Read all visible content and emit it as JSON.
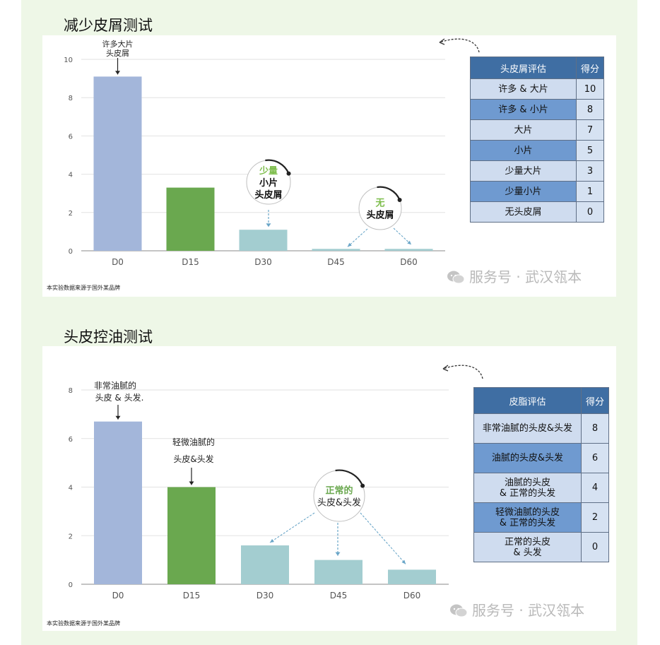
{
  "sections": [
    {
      "title": "减少皮屑测试",
      "source_note": "本实验数据来源于国外某品牌",
      "watermark": "服务号 · 武汉瓴本",
      "table": {
        "headers": [
          "头皮屑评估",
          "得分"
        ],
        "rows": [
          [
            "许多 & 大片",
            "10"
          ],
          [
            "许多 & 小片",
            "8"
          ],
          [
            "大片",
            "7"
          ],
          [
            "小片",
            "5"
          ],
          [
            "少量大片",
            "3"
          ],
          [
            "少量小片",
            "1"
          ],
          [
            "无头皮屑",
            "0"
          ]
        ]
      },
      "annotations": {
        "bar_label": [
          "许多大片",
          "头皮屑"
        ],
        "bubble1": [
          "少量",
          "小片",
          "头皮屑"
        ],
        "bubble2": [
          "无",
          "头皮屑"
        ]
      }
    },
    {
      "title": "头皮控油测试",
      "source_note": "本实验数据来源于国外某品牌",
      "watermark": "服务号 · 武汉瓴本",
      "table": {
        "headers": [
          "皮脂评估",
          "得分"
        ],
        "rows": [
          [
            "非常油腻的头皮&头发",
            "8"
          ],
          [
            "油腻的头皮&头发",
            "6"
          ],
          [
            "油腻的头皮\n& 正常的头发",
            "4"
          ],
          [
            "轻微油腻的头皮\n& 正常的头发",
            "2"
          ],
          [
            "正常的头皮\n& 头发",
            "0"
          ]
        ]
      },
      "annotations": {
        "bar_label0": [
          "非常油腻的",
          "头皮 & 头发."
        ],
        "bar_label1": [
          "轻微油腻的",
          "头皮&头发"
        ],
        "bubble": [
          "正常的",
          "头皮&头发"
        ]
      }
    }
  ],
  "chart_data": [
    {
      "type": "bar",
      "title": "减少皮屑测试",
      "categories": [
        "D0",
        "D15",
        "D30",
        "D45",
        "D60"
      ],
      "values": [
        9.1,
        3.3,
        1.1,
        0.1,
        0.1
      ],
      "bar_colors": [
        "#a3b6da",
        "#6aa84f",
        "#a3cdd0",
        "#a3cdd0",
        "#a3cdd0"
      ],
      "ylim": [
        0,
        10
      ],
      "yticks": [
        0,
        2,
        4,
        6,
        8,
        10
      ],
      "grid": true
    },
    {
      "type": "bar",
      "title": "头皮控油测试",
      "categories": [
        "D0",
        "D15",
        "D30",
        "D45",
        "D60"
      ],
      "values": [
        6.7,
        4.0,
        1.6,
        1.0,
        0.6
      ],
      "bar_colors": [
        "#a3b6da",
        "#6aa84f",
        "#a3cdd0",
        "#a3cdd0",
        "#a3cdd0"
      ],
      "ylim": [
        0,
        8
      ],
      "yticks": [
        0,
        2,
        4,
        6,
        8
      ],
      "grid": true
    }
  ]
}
